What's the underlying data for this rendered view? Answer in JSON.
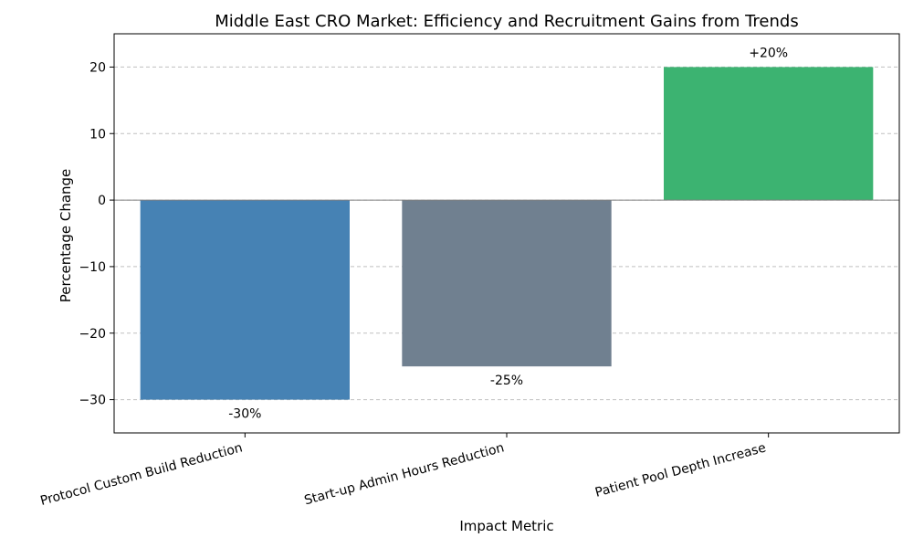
{
  "chart_data": {
    "type": "bar",
    "title": "Middle East CRO Market: Efficiency and Recruitment Gains from Trends",
    "xlabel": "Impact Metric",
    "ylabel": "Percentage Change",
    "categories": [
      "Protocol Custom Build Reduction",
      "Start-up Admin Hours Reduction",
      "Patient Pool Depth Increase"
    ],
    "values": [
      -30,
      -25,
      20
    ],
    "data_labels": [
      "-30%",
      "-25%",
      "+20%"
    ],
    "colors": [
      "#4682b4",
      "#708090",
      "#3cb371"
    ],
    "ylim": [
      -35,
      25
    ],
    "yticks": [
      -30,
      -20,
      -10,
      0,
      10,
      20
    ],
    "ytick_labels": [
      "−30",
      "−20",
      "−10",
      "0",
      "10",
      "20"
    ],
    "grid": true,
    "zero_line": true
  }
}
